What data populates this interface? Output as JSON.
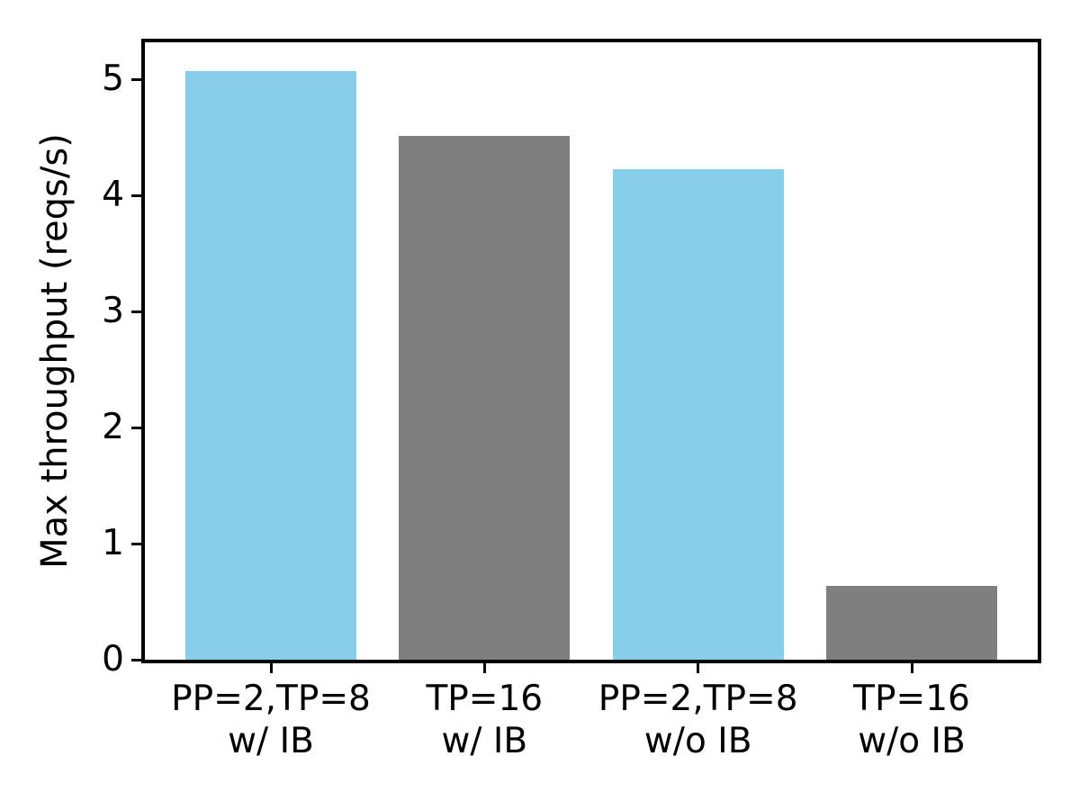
{
  "chart_data": {
    "type": "bar",
    "title": "",
    "xlabel": "",
    "ylabel": "Max throughput (reqs/s)",
    "categories": [
      "PP=2,TP=8\nw/ IB",
      "TP=16\nw/ IB",
      "PP=2,TP=8\nw/o IB",
      "TP=16\nw/o IB"
    ],
    "values": [
      5.07,
      4.51,
      4.23,
      0.64
    ],
    "bar_colors": [
      "#87ceeb",
      "#7f7f7f",
      "#87ceeb",
      "#7f7f7f"
    ],
    "yticks": [
      0,
      1,
      2,
      3,
      4,
      5
    ],
    "ylim": [
      0,
      5.32
    ],
    "xlim": [
      -0.59,
      3.59
    ],
    "bar_width": 0.8,
    "grid": false,
    "legend": null,
    "spine_color": "#000000",
    "text_color": "#000000",
    "background_color": "#ffffff"
  }
}
